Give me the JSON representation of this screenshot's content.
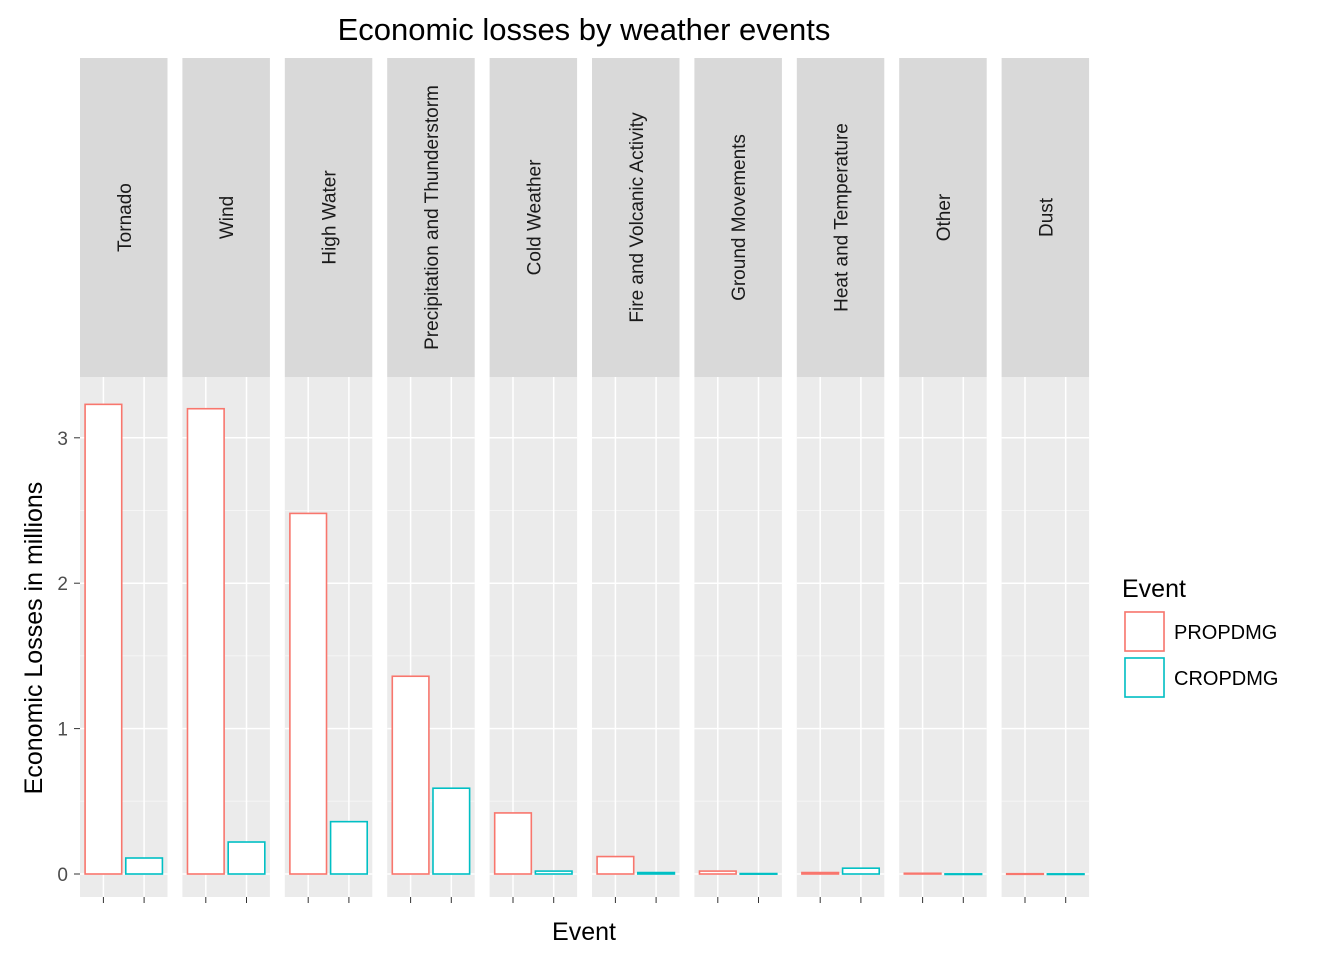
{
  "chart_data": {
    "type": "bar",
    "title": "Economic losses by weather events",
    "xlabel": "Event",
    "ylabel": "Economic Losses in millions",
    "ylim": [
      0,
      3.4
    ],
    "yticks": [
      0,
      1,
      2,
      3
    ],
    "grid": true,
    "facet_by": "event",
    "categories": [
      "Tornado",
      "Wind",
      "High Water",
      "Precipitation and Thunderstorm",
      "Cold Weather",
      "Fire and Volcanic Activity",
      "Ground Movements",
      "Heat and Temperature",
      "Other",
      "Dust"
    ],
    "series": [
      {
        "name": "PROPDMG",
        "color": "#F8766D",
        "values": [
          3.23,
          3.2,
          2.48,
          1.36,
          0.42,
          0.12,
          0.02,
          0.01,
          0.005,
          0.002
        ]
      },
      {
        "name": "CROPDMG",
        "color": "#00BFC4",
        "values": [
          0.11,
          0.22,
          0.36,
          0.59,
          0.02,
          0.01,
          0.003,
          0.04,
          0.001,
          0.001
        ]
      }
    ],
    "legend": {
      "title": "Event",
      "placement": "right"
    }
  },
  "colors": {
    "panel_background": "#EBEBEB",
    "strip_background": "#D9D9D9",
    "grid_major": "#FFFFFF",
    "bar_fill": "#FFFFFF"
  }
}
